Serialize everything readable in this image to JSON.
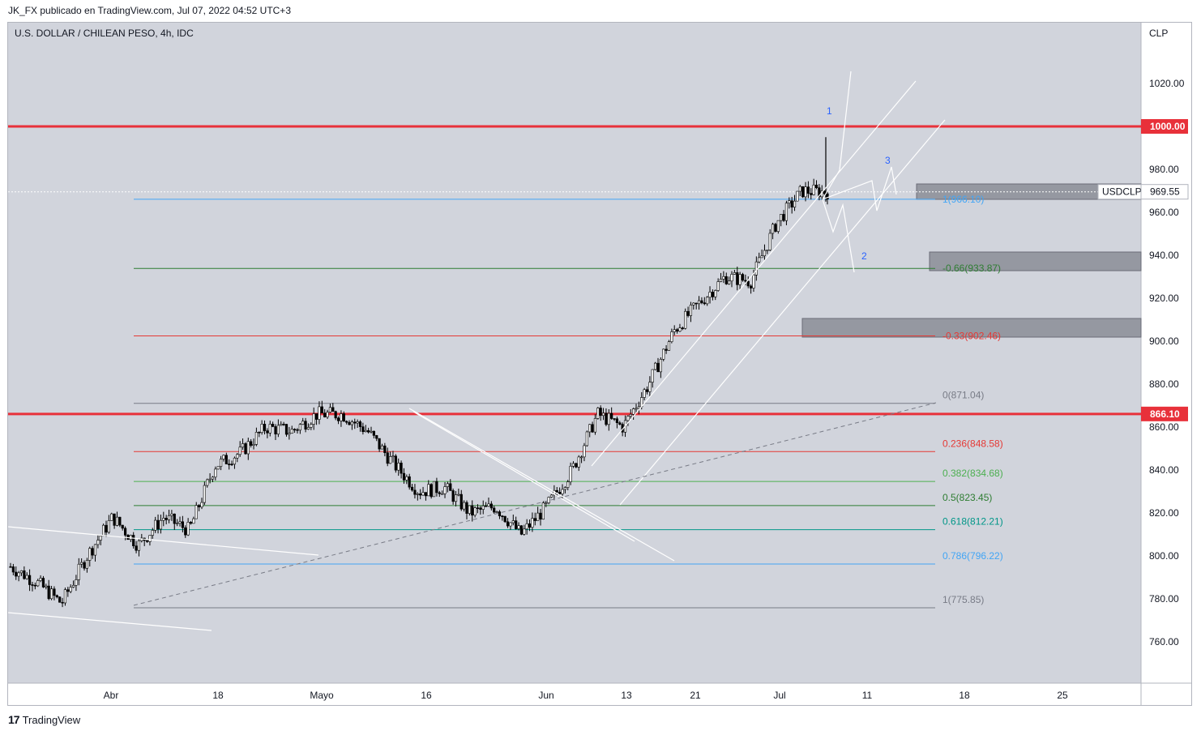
{
  "header": {
    "publisher": "JK_FX publicado en TradingView.com, Jul 07, 2022 04:52 UTC+3"
  },
  "chart_title": "U.S. DOLLAR / CHILEAN PESO, 4h, IDC",
  "footer": {
    "brand": "TradingView",
    "logo": "17"
  },
  "colors": {
    "background": "#d1d4dc",
    "red_line": "#e8313a",
    "fib_green": "#4caf50",
    "fib_blue": "#42a5f5",
    "drawing": "#ffffff",
    "label_blue": "#2962ff"
  },
  "chart_data": {
    "type": "candlestick",
    "currency_label": "CLP",
    "y_ticks": [
      "760.00",
      "780.00",
      "800.00",
      "820.00",
      "840.00",
      "860.00",
      "880.00",
      "900.00",
      "920.00",
      "940.00",
      "960.00",
      "980.00",
      "1020.00"
    ],
    "x_ticks": [
      "Abr",
      "18",
      "Mayo",
      "16",
      "Jun",
      "13",
      "21",
      "Jul",
      "11",
      "18",
      "25"
    ],
    "horizontal_levels": [
      {
        "label": "1000.00",
        "value": 1000.0,
        "color": "#e8313a"
      },
      {
        "label": "866.10",
        "value": 866.1,
        "color": "#e8313a"
      }
    ],
    "last_price": {
      "symbol": "USDCLP",
      "value": "969.55"
    },
    "fib_extension_labels": [
      {
        "label": "1(966.10)",
        "value": 966.1,
        "color": "#42a5f5"
      },
      {
        "label": "-0.66(933.87)",
        "value": 933.87,
        "color": "#2e7d32"
      },
      {
        "label": "-0.33(902.46)",
        "value": 902.46,
        "color": "#e53935"
      }
    ],
    "fib_retracement": [
      {
        "label": "0(871.04)",
        "value": 871.04,
        "color": "#787b86"
      },
      {
        "label": "0.236(848.58)",
        "value": 848.58,
        "color": "#e53935"
      },
      {
        "label": "0.382(834.68)",
        "value": 834.68,
        "color": "#4caf50"
      },
      {
        "label": "0.5(823.45)",
        "value": 823.45,
        "color": "#2e7d32"
      },
      {
        "label": "0.618(812.21)",
        "value": 812.21,
        "color": "#009688"
      },
      {
        "label": "0.786(796.22)",
        "value": 796.22,
        "color": "#42a5f5"
      },
      {
        "label": "1(775.85)",
        "value": 775.85,
        "color": "#787b86"
      }
    ],
    "wave_labels": [
      "1",
      "2",
      "3"
    ],
    "close_path": [
      [
        "Mar 28",
        795
      ],
      [
        "Abr 1",
        788
      ],
      [
        "Abr 4",
        778
      ],
      [
        "Abr 7",
        800
      ],
      [
        "Abr 11",
        818
      ],
      [
        "Abr 14",
        805
      ],
      [
        "Abr 18",
        818
      ],
      [
        "Abr 22",
        812
      ],
      [
        "Abr 25",
        842
      ],
      [
        "Abr 29",
        848
      ],
      [
        "May 3",
        860
      ],
      [
        "May 6",
        858
      ],
      [
        "May 10",
        866
      ],
      [
        "May 13",
        866
      ],
      [
        "May 16",
        858
      ],
      [
        "May 20",
        843
      ],
      [
        "May 24",
        830
      ],
      [
        "May 27",
        832
      ],
      [
        "Jun 1",
        820
      ],
      [
        "Jun 3",
        823
      ],
      [
        "Jun 7",
        810
      ],
      [
        "Jun 10",
        823
      ],
      [
        "Jun 13",
        840
      ],
      [
        "Jun 15",
        866
      ],
      [
        "Jun 17",
        860
      ],
      [
        "Jun 21",
        880
      ],
      [
        "Jun 24",
        905
      ],
      [
        "Jun 27",
        918
      ],
      [
        "Jun 29",
        930
      ],
      [
        "Jul 1",
        928
      ],
      [
        "Jul 4",
        955
      ],
      [
        "Jul 6",
        970
      ],
      [
        "Jul 7",
        969.55
      ]
    ]
  }
}
